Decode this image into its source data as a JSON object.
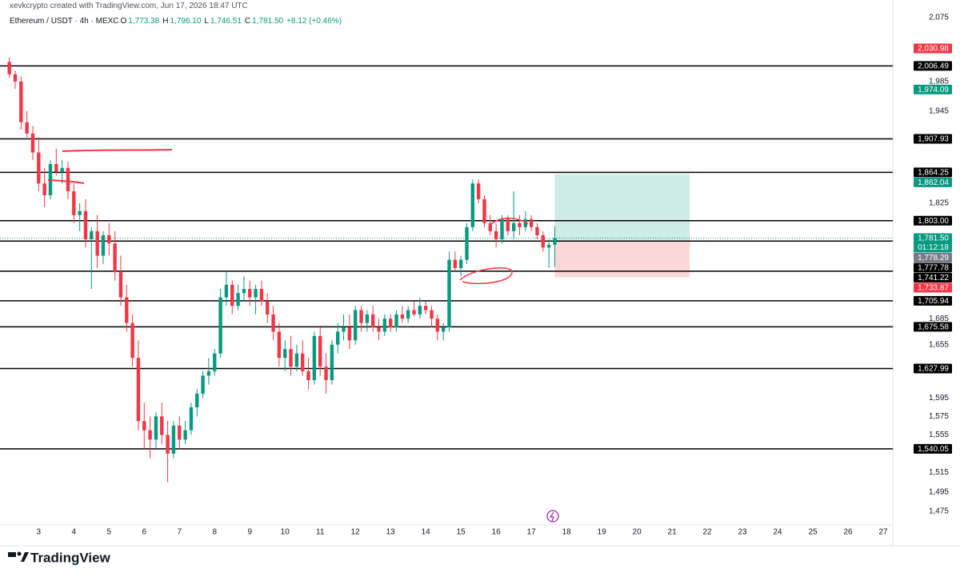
{
  "chart_data": {
    "type": "candlestick",
    "caption": "xevkcrypto created with TradingView.com, Jun 17, 2026 18:47 UTC",
    "title": "Ethereum / USDT · 4h · MEXC",
    "ohlc_legend": [
      {
        "key": "O",
        "text": "1,773.38"
      },
      {
        "key": "H",
        "text": "1,796.10"
      },
      {
        "key": "L",
        "text": "1,746.51"
      },
      {
        "key": "C",
        "text": "1,781.50"
      }
    ],
    "change": "+8.12 (+0.46%)",
    "up_color": "#089981",
    "down_color": "#f23645",
    "x": [
      0,
      1,
      2,
      3,
      4,
      5,
      6,
      7,
      8,
      9,
      10,
      11,
      12,
      13,
      14,
      15,
      16,
      17,
      18,
      19,
      20,
      21,
      22,
      23,
      24,
      25,
      26,
      27,
      28,
      29,
      30,
      31,
      32,
      33,
      34,
      35,
      36,
      37,
      38,
      39,
      40,
      41,
      42,
      43,
      44,
      45,
      46,
      47,
      48,
      49,
      50,
      51,
      52,
      53,
      54,
      55,
      56,
      57,
      58,
      59,
      60,
      61,
      62,
      63,
      64,
      65,
      66,
      67,
      68,
      69,
      70,
      71,
      72,
      73,
      74,
      75,
      76,
      77,
      78,
      79,
      80,
      81,
      82,
      83,
      84,
      85,
      86,
      87,
      88,
      89,
      90,
      91,
      92,
      93
    ],
    "open": [
      2012,
      1995,
      1985,
      1930,
      1915,
      1890,
      1850,
      1835,
      1875,
      1865,
      1870,
      1840,
      1810,
      1815,
      1780,
      1790,
      1760,
      1785,
      1775,
      1740,
      1710,
      1680,
      1640,
      1570,
      1560,
      1550,
      1575,
      1555,
      1535,
      1565,
      1550,
      1560,
      1585,
      1600,
      1620,
      1625,
      1645,
      1710,
      1725,
      1700,
      1715,
      1720,
      1710,
      1720,
      1705,
      1690,
      1670,
      1640,
      1650,
      1630,
      1645,
      1625,
      1615,
      1665,
      1630,
      1615,
      1655,
      1670,
      1675,
      1660,
      1695,
      1680,
      1690,
      1675,
      1670,
      1685,
      1675,
      1690,
      1685,
      1695,
      1690,
      1700,
      1695,
      1685,
      1670,
      1675,
      1755,
      1745,
      1755,
      1795,
      1850,
      1830,
      1800,
      1790,
      1780,
      1805,
      1790,
      1800,
      1795,
      1805,
      1795,
      1785,
      1770,
      1773.38
    ],
    "high": [
      2018,
      2000,
      1992,
      1945,
      1925,
      1910,
      1870,
      1880,
      1895,
      1880,
      1878,
      1850,
      1825,
      1830,
      1795,
      1810,
      1790,
      1800,
      1790,
      1760,
      1725,
      1690,
      1660,
      1590,
      1575,
      1580,
      1590,
      1570,
      1570,
      1575,
      1570,
      1590,
      1605,
      1625,
      1640,
      1650,
      1720,
      1740,
      1730,
      1725,
      1735,
      1730,
      1725,
      1730,
      1715,
      1700,
      1680,
      1660,
      1665,
      1655,
      1660,
      1640,
      1670,
      1675,
      1645,
      1660,
      1680,
      1690,
      1690,
      1700,
      1700,
      1695,
      1700,
      1685,
      1690,
      1690,
      1695,
      1700,
      1700,
      1705,
      1710,
      1705,
      1700,
      1690,
      1680,
      1765,
      1765,
      1760,
      1800,
      1855,
      1855,
      1835,
      1810,
      1800,
      1810,
      1810,
      1840,
      1810,
      1815,
      1810,
      1800,
      1790,
      1780,
      1796.1
    ],
    "low": [
      1990,
      1975,
      1920,
      1910,
      1880,
      1840,
      1820,
      1830,
      1860,
      1850,
      1830,
      1800,
      1790,
      1770,
      1720,
      1745,
      1750,
      1760,
      1730,
      1700,
      1670,
      1630,
      1560,
      1540,
      1530,
      1540,
      1545,
      1505,
      1530,
      1540,
      1545,
      1555,
      1575,
      1595,
      1610,
      1620,
      1640,
      1700,
      1690,
      1695,
      1705,
      1700,
      1690,
      1700,
      1680,
      1660,
      1630,
      1625,
      1620,
      1625,
      1620,
      1605,
      1610,
      1620,
      1600,
      1610,
      1645,
      1660,
      1650,
      1655,
      1670,
      1670,
      1670,
      1660,
      1665,
      1670,
      1670,
      1680,
      1680,
      1688,
      1685,
      1690,
      1675,
      1660,
      1660,
      1670,
      1740,
      1735,
      1750,
      1790,
      1825,
      1795,
      1785,
      1770,
      1775,
      1785,
      1780,
      1785,
      1790,
      1790,
      1780,
      1765,
      1745,
      1746.51
    ],
    "close": [
      1995,
      1985,
      1930,
      1915,
      1890,
      1850,
      1835,
      1875,
      1865,
      1870,
      1840,
      1810,
      1815,
      1780,
      1790,
      1760,
      1785,
      1775,
      1740,
      1710,
      1680,
      1640,
      1570,
      1560,
      1550,
      1575,
      1555,
      1535,
      1565,
      1550,
      1560,
      1585,
      1600,
      1620,
      1625,
      1645,
      1710,
      1725,
      1700,
      1715,
      1720,
      1710,
      1720,
      1705,
      1690,
      1670,
      1640,
      1650,
      1630,
      1645,
      1625,
      1615,
      1665,
      1630,
      1615,
      1655,
      1670,
      1675,
      1660,
      1695,
      1680,
      1690,
      1675,
      1670,
      1685,
      1675,
      1690,
      1685,
      1695,
      1690,
      1700,
      1695,
      1685,
      1670,
      1675,
      1755,
      1745,
      1755,
      1795,
      1850,
      1830,
      1800,
      1790,
      1780,
      1805,
      1790,
      1800,
      1795,
      1805,
      1795,
      1785,
      1770,
      1773.38,
      1781.5
    ],
    "xlim": [
      -0.5,
      150.5
    ],
    "xticks": [
      {
        "value": 5,
        "label": "3"
      },
      {
        "value": 11,
        "label": "4"
      },
      {
        "value": 17,
        "label": "5"
      },
      {
        "value": 23,
        "label": "6"
      },
      {
        "value": 29,
        "label": "7"
      },
      {
        "value": 35,
        "label": "8"
      },
      {
        "value": 41,
        "label": "9"
      },
      {
        "value": 47,
        "label": "10"
      },
      {
        "value": 53,
        "label": "11"
      },
      {
        "value": 59,
        "label": "12"
      },
      {
        "value": 65,
        "label": "13"
      },
      {
        "value": 71,
        "label": "14"
      },
      {
        "value": 77,
        "label": "15"
      },
      {
        "value": 83,
        "label": "16"
      },
      {
        "value": 89,
        "label": "17"
      },
      {
        "value": 95,
        "label": "18"
      },
      {
        "value": 101,
        "label": "19"
      },
      {
        "value": 107,
        "label": "20"
      },
      {
        "value": 113,
        "label": "21"
      },
      {
        "value": 119,
        "label": "22"
      },
      {
        "value": 125,
        "label": "23"
      },
      {
        "value": 131,
        "label": "24"
      },
      {
        "value": 137,
        "label": "25"
      },
      {
        "value": 143,
        "label": "26"
      },
      {
        "value": 149,
        "label": "27"
      }
    ],
    "ylim": [
      1462,
      2100
    ],
    "log_scale": true,
    "grid": false,
    "yticks": [
      {
        "value": 2075,
        "label": "2,075"
      },
      {
        "value": 1985,
        "label": "1,985"
      },
      {
        "value": 1945,
        "label": "1,945"
      },
      {
        "value": 1825,
        "label": "1,825"
      },
      {
        "value": 1685,
        "label": "1,685"
      },
      {
        "value": 1655,
        "label": "1,655"
      },
      {
        "value": 1595,
        "label": "1,595"
      },
      {
        "value": 1575,
        "label": "1,575"
      },
      {
        "value": 1555,
        "label": "1,555"
      },
      {
        "value": 1515,
        "label": "1,515"
      },
      {
        "value": 1495,
        "label": "1,495"
      },
      {
        "value": 1475,
        "label": "1,475"
      }
    ],
    "levels": [
      {
        "value": 2006.49,
        "label": "2,006.49"
      },
      {
        "value": 1907.93,
        "label": "1,907.93"
      },
      {
        "value": 1864.25,
        "label": "1,864.25"
      },
      {
        "value": 1803.0,
        "label": "1,803.00"
      },
      {
        "value": 1777.78,
        "label": "1,777.78"
      },
      {
        "value": 1741.22,
        "label": "1,741.22"
      },
      {
        "value": 1705.94,
        "label": "1,705.94"
      },
      {
        "value": 1675.58,
        "label": "1,675.58"
      },
      {
        "value": 1627.99,
        "label": "1,627.99"
      },
      {
        "value": 1540.05,
        "label": "1,540.05"
      }
    ],
    "price_labels": [
      {
        "value": 2030.98,
        "label": "2,030.98",
        "color": "#f23645"
      },
      {
        "value": 1974.09,
        "label": "1,974.09",
        "color": "#089981"
      },
      {
        "value": 1862.04,
        "label": "1,862.04",
        "color": "#089981"
      },
      {
        "value": 1778.29,
        "label": "1,778.29",
        "color": "#787b86"
      },
      {
        "value": 1733.87,
        "label": "1,733.87",
        "color": "#f23645"
      }
    ],
    "current": {
      "value": 1781.5,
      "label": "1,781.50",
      "countdown": "01:12:18",
      "color": "#089981"
    },
    "position": {
      "x": [
        93,
        116
      ],
      "target": 1862.04,
      "entry": 1778.29,
      "stop": 1733.87
    },
    "brand": "TradingView"
  }
}
